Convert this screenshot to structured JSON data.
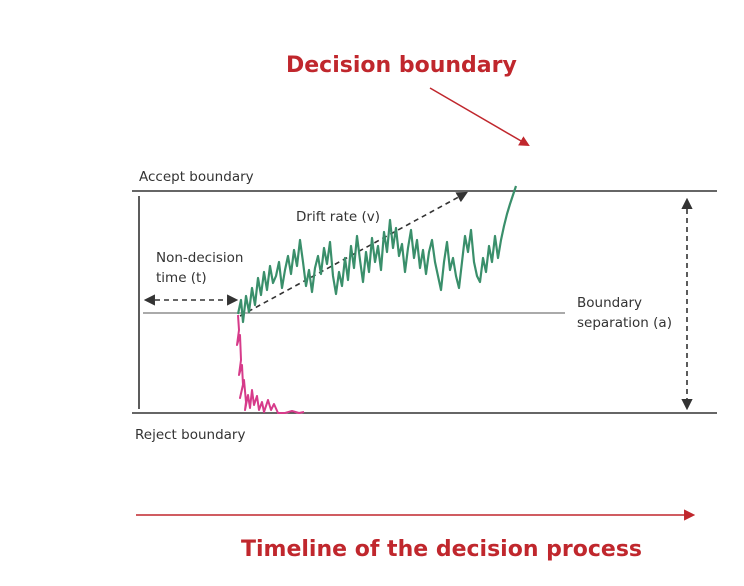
{
  "title": "Decision boundary",
  "labels": {
    "accept_boundary": "Accept boundary",
    "reject_boundary": "Reject boundary",
    "drift_rate": "Drift rate (v)",
    "non_decision_line1": "Non-decision",
    "non_decision_line2": "time (t)",
    "boundary_sep_line1": "Boundary",
    "boundary_sep_line2": "separation (a)"
  },
  "timeline": "Timeline of the decision process",
  "colors": {
    "title": "#c0272d",
    "accept_path": "#3a8f6b",
    "reject_path": "#d63b8a",
    "lines": "#333333"
  }
}
